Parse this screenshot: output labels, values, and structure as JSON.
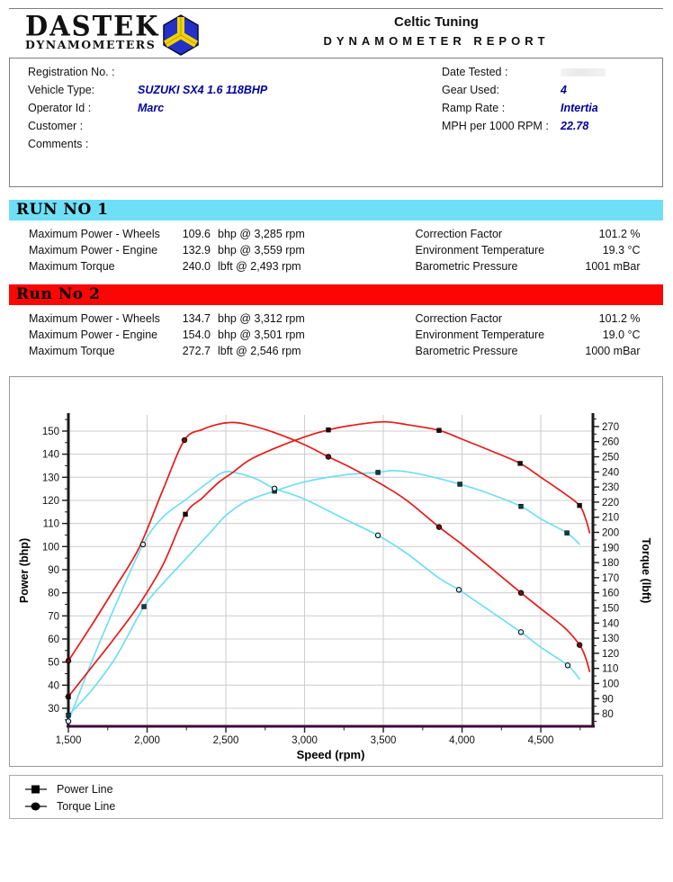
{
  "header": {
    "brand_name": "DASTEK",
    "brand_subtitle": "DYNAMOMETERS",
    "company": "Celtic Tuning",
    "report_title": "DYNAMOMETER REPORT",
    "logo_colors": {
      "blue": "#2431c8",
      "yellow": "#f2d400"
    }
  },
  "info": {
    "left": [
      {
        "label": "Registration No. :",
        "value": ""
      },
      {
        "label": "Vehicle Type:",
        "value": "SUZUKI SX4 1.6 118BHP"
      },
      {
        "label": "Operator Id :",
        "value": "Marc"
      },
      {
        "label": "Customer :",
        "value": ""
      },
      {
        "label": "Comments :",
        "value": ""
      }
    ],
    "right": [
      {
        "label": "Date Tested :",
        "value": "",
        "redacted": true
      },
      {
        "label": "Gear Used:",
        "value": "4"
      },
      {
        "label": "Ramp Rate :",
        "value": "Intertia"
      },
      {
        "label": "MPH per 1000 RPM :",
        "value": "22.78"
      }
    ]
  },
  "runs": [
    {
      "title": "RUN NO 1",
      "band_color": "#6FDFF7",
      "rows": [
        {
          "label": "Maximum Power - Wheels",
          "value": "109.6",
          "unit": "bhp @ 3,285 rpm"
        },
        {
          "label": "Maximum Power - Engine",
          "value": "132.9",
          "unit": "bhp @ 3,559 rpm"
        },
        {
          "label": "Maximum Torque",
          "value": "240.0",
          "unit": "lbft @ 2,493 rpm"
        }
      ],
      "env": [
        {
          "label": "Correction Factor",
          "value": "101.2 %"
        },
        {
          "label": "Environment Temperature",
          "value": "19.3 °C"
        },
        {
          "label": "Barometric Pressure",
          "value": "1001 mBar"
        }
      ]
    },
    {
      "title": "Run No 2",
      "band_color": "#FB0505",
      "rows": [
        {
          "label": "Maximum Power - Wheels",
          "value": "134.7",
          "unit": "bhp @ 3,312 rpm"
        },
        {
          "label": "Maximum Power - Engine",
          "value": "154.0",
          "unit": "bhp @ 3,501 rpm"
        },
        {
          "label": "Maximum Torque",
          "value": "272.7",
          "unit": "lbft @ 2,546 rpm"
        }
      ],
      "env": [
        {
          "label": "Correction Factor",
          "value": "101.2 %"
        },
        {
          "label": "Environment Temperature",
          "value": "19.0 °C"
        },
        {
          "label": "Barometric Pressure",
          "value": "1000 mBar"
        }
      ]
    }
  ],
  "chart_data": {
    "type": "line",
    "xlabel": "Speed (rpm)",
    "ylabel_left": "Power (bhp)",
    "ylabel_right": "Torque (lbft)",
    "grid": true,
    "x_axis": {
      "range": [
        1500,
        4831
      ],
      "ticks": [
        1500,
        2000,
        2500,
        3000,
        3500,
        4000,
        4500
      ],
      "minor_step": 250,
      "axis_color": "#3c0a3c"
    },
    "y_left": {
      "range": [
        22.2,
        157
      ],
      "ticks": [
        30,
        40,
        50,
        60,
        70,
        80,
        90,
        100,
        110,
        120,
        130,
        140,
        150
      ],
      "minor_step": 5
    },
    "y_right": {
      "range": [
        71.7,
        277.7
      ],
      "ticks": [
        80,
        90,
        100,
        110,
        120,
        130,
        140,
        150,
        160,
        170,
        180,
        190,
        200,
        210,
        220,
        230,
        240,
        250,
        260,
        270
      ],
      "minor_step": 5
    },
    "grid_color": "#cccccc",
    "series": [
      {
        "name": "Run 1 Power",
        "axis": "left",
        "color": "#6fdff3",
        "marker": "square",
        "marker_fill": "#0b3d47",
        "points": [
          [
            1500,
            27
          ],
          [
            1650,
            38
          ],
          [
            1800,
            52
          ],
          [
            1980,
            74
          ],
          [
            2100,
            84
          ],
          [
            2250,
            95
          ],
          [
            2400,
            106
          ],
          [
            2493,
            113
          ],
          [
            2600,
            118.5
          ],
          [
            2700,
            121.5
          ],
          [
            2809,
            124
          ],
          [
            3000,
            128
          ],
          [
            3250,
            131
          ],
          [
            3466,
            132.1
          ],
          [
            3559,
            132.9
          ],
          [
            3700,
            131.8
          ],
          [
            3850,
            129.5
          ],
          [
            3986,
            127
          ],
          [
            4150,
            123.5
          ],
          [
            4374,
            117.4
          ],
          [
            4500,
            112
          ],
          [
            4666,
            105.9
          ],
          [
            4746,
            101
          ]
        ],
        "marker_points": [
          [
            1500,
            27
          ],
          [
            1980,
            74
          ],
          [
            2809,
            124
          ],
          [
            3466,
            132.1
          ],
          [
            3986,
            127
          ],
          [
            4374,
            117.4
          ],
          [
            4666,
            105.9
          ]
        ]
      },
      {
        "name": "Run 1 Torque",
        "axis": "right",
        "color": "#6fdff3",
        "marker": "circle",
        "marker_fill": "#c9f4fc",
        "points": [
          [
            1500,
            75
          ],
          [
            1650,
            115
          ],
          [
            1800,
            152
          ],
          [
            1974,
            192
          ],
          [
            2100,
            210
          ],
          [
            2250,
            222
          ],
          [
            2400,
            234
          ],
          [
            2493,
            240
          ],
          [
            2600,
            238.5
          ],
          [
            2700,
            235
          ],
          [
            2809,
            229
          ],
          [
            3000,
            222
          ],
          [
            3250,
            209
          ],
          [
            3466,
            198
          ],
          [
            3650,
            186
          ],
          [
            3850,
            170
          ],
          [
            3980,
            162
          ],
          [
            4150,
            150
          ],
          [
            4374,
            134
          ],
          [
            4500,
            124
          ],
          [
            4671,
            112
          ],
          [
            4746,
            103
          ]
        ],
        "marker_points": [
          [
            1500,
            75
          ],
          [
            1974,
            192
          ],
          [
            2809,
            229
          ],
          [
            3466,
            198
          ],
          [
            3980,
            162
          ],
          [
            4374,
            134
          ],
          [
            4671,
            112
          ]
        ]
      },
      {
        "name": "Run 2 Power",
        "axis": "left",
        "color": "#e81a1a",
        "marker": "square",
        "marker_fill": "#1a0a0a",
        "points": [
          [
            1500,
            35
          ],
          [
            1650,
            48
          ],
          [
            1800,
            61
          ],
          [
            1950,
            75
          ],
          [
            2100,
            92
          ],
          [
            2243,
            114
          ],
          [
            2350,
            121
          ],
          [
            2450,
            127.5
          ],
          [
            2546,
            132.2
          ],
          [
            2650,
            137.5
          ],
          [
            2809,
            142.5
          ],
          [
            3000,
            147.5
          ],
          [
            3151,
            150.5
          ],
          [
            3300,
            152.5
          ],
          [
            3501,
            154
          ],
          [
            3650,
            152.8
          ],
          [
            3854,
            150.3
          ],
          [
            4000,
            146.5
          ],
          [
            4200,
            141
          ],
          [
            4369,
            136
          ],
          [
            4500,
            130
          ],
          [
            4650,
            123
          ],
          [
            4746,
            117.8
          ],
          [
            4785,
            112
          ],
          [
            4810,
            106
          ]
        ],
        "marker_points": [
          [
            1500,
            35
          ],
          [
            2243,
            114
          ],
          [
            3151,
            150.5
          ],
          [
            3854,
            150.3
          ],
          [
            4369,
            136
          ],
          [
            4746,
            117.8
          ]
        ]
      },
      {
        "name": "Run 2 Torque",
        "axis": "right",
        "color": "#e81a1a",
        "marker": "circle",
        "marker_fill": "#7a0b0b",
        "points": [
          [
            1500,
            115
          ],
          [
            1650,
            139
          ],
          [
            1800,
            164
          ],
          [
            1950,
            190
          ],
          [
            2100,
            228
          ],
          [
            2237,
            261
          ],
          [
            2350,
            268
          ],
          [
            2450,
            271.5
          ],
          [
            2546,
            272.7
          ],
          [
            2650,
            271
          ],
          [
            2809,
            266
          ],
          [
            3000,
            258
          ],
          [
            3151,
            250
          ],
          [
            3300,
            242.5
          ],
          [
            3501,
            231
          ],
          [
            3650,
            221
          ],
          [
            3854,
            203.5
          ],
          [
            4000,
            192
          ],
          [
            4200,
            175
          ],
          [
            4374,
            160
          ],
          [
            4500,
            149.5
          ],
          [
            4650,
            137
          ],
          [
            4746,
            125.5
          ],
          [
            4785,
            117
          ],
          [
            4810,
            108
          ]
        ],
        "marker_points": [
          [
            1500,
            115
          ],
          [
            2237,
            261
          ],
          [
            3151,
            250
          ],
          [
            3854,
            203.5
          ],
          [
            4374,
            160
          ],
          [
            4746,
            125.5
          ]
        ]
      }
    ]
  },
  "legend": [
    {
      "shape": "square",
      "label": "Power Line"
    },
    {
      "shape": "circle",
      "label": "Torque Line"
    }
  ]
}
